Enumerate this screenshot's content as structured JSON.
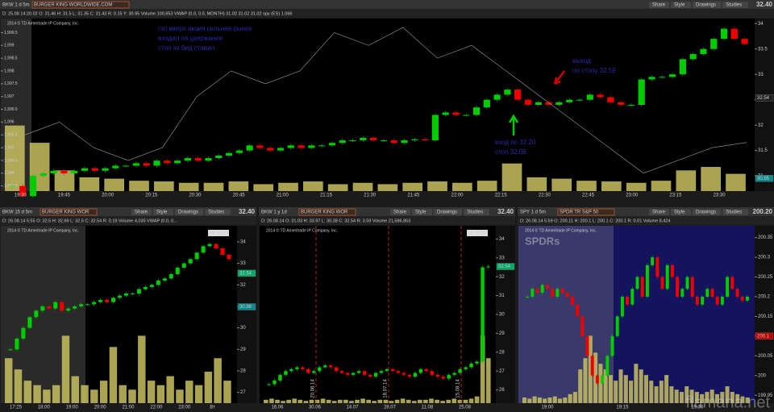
{
  "watermark": "flamana.net",
  "panels": [
    {
      "symbol": "BKW 1 d 5m",
      "name": "BURGER KING WORLDWIDE.COM",
      "info": "D: 25.08 14:20.02  O: 31.46  H: 31.5  L: 31.35  C: 31.43  R: 0.15  Y: 30.95  Volume 100,653  VWAP (0.0, 0.0, MONTH) 31.02 31.02 31.02  spy (ES) 1.066",
      "price": "32.40",
      "buttons": [
        "Share",
        "Style",
        "Drawings",
        "Studies"
      ],
      "copyright": "2014 © TD Ameritrade IP Company, Inc.",
      "ylim": [
        30.7,
        34.1
      ],
      "yticks": [
        31,
        31.5,
        32,
        32.5,
        33,
        33.5,
        34
      ],
      "marks": [
        32.54,
        30.95
      ],
      "xticks": [
        "19:30",
        "19:45",
        "20:00",
        "20:15",
        "20:30",
        "20:45",
        "21:00",
        "21:15",
        "21:30",
        "21:45",
        "22:00",
        "22:15",
        "22:30",
        "22:45",
        "23:00",
        "23:15",
        "23:30"
      ],
      "closes": [
        30.8,
        30.6,
        31.0,
        31.05,
        31.1,
        31.05,
        31.1,
        31.15,
        31.1,
        31.15,
        31.2,
        31.2,
        31.25,
        31.2,
        31.3,
        31.25,
        31.3,
        31.35,
        31.3,
        31.35,
        31.4,
        31.45,
        31.5,
        31.6,
        31.55,
        31.5,
        31.55,
        31.6,
        31.55,
        31.6,
        31.6,
        31.65,
        31.7,
        31.7,
        31.75,
        31.7,
        31.7,
        31.65,
        31.7,
        31.72,
        31.7,
        32.2,
        32.25,
        32.2,
        32.2,
        32.35,
        32.5,
        32.6,
        32.7,
        32.5,
        32.4,
        32.45,
        32.4,
        32.45,
        32.5,
        32.5,
        32.6,
        32.55,
        32.45,
        32.4,
        32.4,
        32.9,
        32.95,
        32.95,
        33.0,
        33.3,
        33.4,
        33.5,
        33.7,
        33.9,
        33.7,
        33.6
      ],
      "volumes": [
        95,
        70,
        30,
        20,
        18,
        15,
        14,
        12,
        12,
        14,
        10,
        12,
        14,
        10,
        12,
        10,
        12,
        14,
        12,
        15,
        40,
        20,
        18,
        15,
        14,
        12,
        15,
        30,
        35,
        25
      ],
      "spy": {
        "ylim": [
          1993.3,
          2000.05
        ],
        "yticks": [
          {
            "value": 1993.5,
            "label": "1,993.5"
          },
          {
            "value": 1994,
            "label": "1,994"
          },
          {
            "value": 1994.5,
            "label": "1,994.5"
          },
          {
            "value": 1995,
            "label": "1,995"
          },
          {
            "value": 1995.5,
            "label": "1,995.5"
          },
          {
            "value": 1996,
            "label": "1,996"
          },
          {
            "value": 1996.5,
            "label": "1,996.5"
          },
          {
            "value": 1997,
            "label": "1,997"
          },
          {
            "value": 1997.5,
            "label": "1,997.5"
          },
          {
            "value": 1998,
            "label": "1,998"
          },
          {
            "value": 1998.5,
            "label": "1,998.5"
          },
          {
            "value": 1999,
            "label": "1,999"
          },
          {
            "value": 1999.5,
            "label": "1,999.5"
          }
        ],
        "values": [
          1995.5,
          1996,
          1995,
          1994.5,
          1995,
          1997,
          1998,
          1997.5,
          1998,
          1999.5,
          1999,
          1999.7,
          1998.5,
          1999,
          1998,
          1997,
          1996,
          1995,
          1994,
          1994.5,
          1995,
          1995.2
        ]
      },
      "annotations": [
        "гэп вверх акция сильнее рынка",
        "входил на удержании",
        "стоп за бид ставил",
        "выход",
        "по стопу 32.59",
        "вход по 32.20",
        "стоп 32.09"
      ]
    },
    {
      "symbol": "BKW 15 d 5m",
      "name": "BURGER KING WOR",
      "info": "D: 26.08.14 5:55  O: 32.5  H: 32.69  L: 32.5  C: 32.54  R: 0.19  Volume 4,035  VWAP (0.0, 0...",
      "price": "32.40",
      "buttons": [
        "Share",
        "Style",
        "Drawings",
        "Studies"
      ],
      "copyright": "2014 © TD Ameritrade IP Company, Inc.",
      "hi": "Hi: 33.97",
      "ylim": [
        26.5,
        34.75
      ],
      "yticks": [
        27,
        28,
        29,
        30,
        31,
        32,
        33,
        34
      ],
      "marks": [
        32.54,
        30.98
      ],
      "xticks": [
        "17:25",
        "18:00",
        "19:00",
        "20:00",
        "21:00",
        "22:00",
        "23:00",
        "Вт"
      ],
      "closes": [
        29.0,
        29.5,
        30.0,
        30.5,
        30.8,
        31.0,
        30.9,
        31.2,
        30.8,
        30.9,
        31.0,
        31.1,
        31.1,
        31.2,
        31.3,
        31.2,
        31.4,
        31.5,
        31.6,
        31.6,
        31.8,
        31.9,
        32.0,
        32.2,
        32.3,
        32.5,
        32.8,
        33.0,
        33.2,
        33.5,
        33.8,
        33.9,
        33.7,
        33.4,
        33.2
      ],
      "volumes": [
        20,
        15,
        10,
        8,
        6,
        8,
        30,
        12,
        8,
        6,
        10,
        25,
        8,
        6,
        30,
        10,
        8,
        12,
        6,
        10,
        8,
        14,
        20,
        10
      ]
    },
    {
      "symbol": "BKW 1 y 1d",
      "name": "BURGER KING WOR",
      "info": "D: 26.08.14  O: 31.03  H: 33.97  L: 30.38  C: 32.54  R: 3.59  Volume 21,586,853",
      "price": "32.40",
      "buttons": [
        "Share",
        "Style",
        "Drawings",
        "Studies"
      ],
      "copyright": "2014 © TD Ameritrade IP Company, Inc.",
      "hi": "Hi: 33.97",
      "ylim": [
        25.3,
        34.7
      ],
      "yticks": [
        26,
        27,
        28,
        29,
        30,
        31,
        32,
        33,
        34
      ],
      "marks": [
        32.54
      ],
      "xticks": [
        "16.06",
        "30.06",
        "14.07",
        "28.07",
        "11.08",
        "25.08"
      ],
      "dates": [
        "20.06.14",
        "18.07.14",
        "15.08.14"
      ],
      "closes": [
        26.3,
        26.5,
        26.8,
        27.0,
        27.1,
        27.2,
        27.1,
        26.9,
        27.0,
        27.2,
        27.3,
        27.2,
        27.0,
        26.9,
        26.8,
        26.9,
        27.0,
        26.8,
        26.7,
        26.9,
        27.0,
        27.1,
        27.0,
        26.9,
        26.8,
        26.7,
        26.9,
        27.1,
        27.0,
        26.8,
        26.7,
        26.6,
        26.8,
        26.9,
        27.1,
        27.2,
        27.4,
        27.5,
        32.5,
        32.54
      ],
      "volumes": [
        3,
        4,
        3,
        2,
        3,
        4,
        3,
        2,
        3,
        3,
        4,
        3,
        2,
        3,
        3,
        2,
        3,
        4,
        3,
        2,
        3,
        3,
        2,
        3,
        4,
        3,
        2,
        3,
        3,
        4,
        3,
        2,
        3,
        4,
        3,
        3,
        4,
        6,
        60,
        40
      ]
    },
    {
      "symbol": "SPY 1 d 5m",
      "name": "SPDR TR S&P 50",
      "info": "D: 26.08.14 5:59  O: 200.11  H: 200.1  L: 200.1  C: 200.1  R: 0.01  Volume 8,424",
      "price": "200.20",
      "buttons": [
        "Share",
        "Style",
        "Drawings",
        "Studies"
      ],
      "copyright": "2014 © TD Ameritrade IP Company, Inc.",
      "logo": "SPDRs",
      "ylim": [
        199.93,
        200.38
      ],
      "yticks": [
        199.95,
        200,
        200.05,
        200.1,
        200.15,
        200.2,
        200.25,
        200.3,
        200.35
      ],
      "marks": [
        200.1
      ],
      "xticks": [
        "19:00",
        "19:15",
        "19:30"
      ],
      "closes": [
        200.2,
        200.22,
        200.21,
        200.23,
        200.22,
        200.2,
        200.22,
        200.21,
        200.2,
        200.18,
        200.15,
        200.1,
        200.05,
        200.0,
        199.98,
        200.0,
        200.05,
        200.1,
        200.15,
        200.2,
        200.18,
        200.22,
        200.25,
        200.2,
        200.28,
        200.3,
        200.25,
        200.22,
        200.28,
        200.25,
        200.2,
        200.22,
        200.25,
        200.2,
        200.18,
        200.2,
        200.22,
        200.2,
        200.18,
        200.2,
        200.25,
        200.22,
        200.2,
        200.19,
        200.2
      ],
      "volumes": [
        5,
        4,
        6,
        5,
        4,
        5,
        6,
        4,
        5,
        8,
        10,
        30,
        40,
        60,
        45,
        35,
        30,
        25,
        20,
        30,
        25,
        20,
        35,
        30,
        25,
        20,
        15,
        20,
        25,
        15,
        12,
        10,
        15,
        12,
        10,
        8,
        10,
        12,
        8,
        10,
        15,
        10,
        8,
        6,
        5
      ]
    }
  ]
}
